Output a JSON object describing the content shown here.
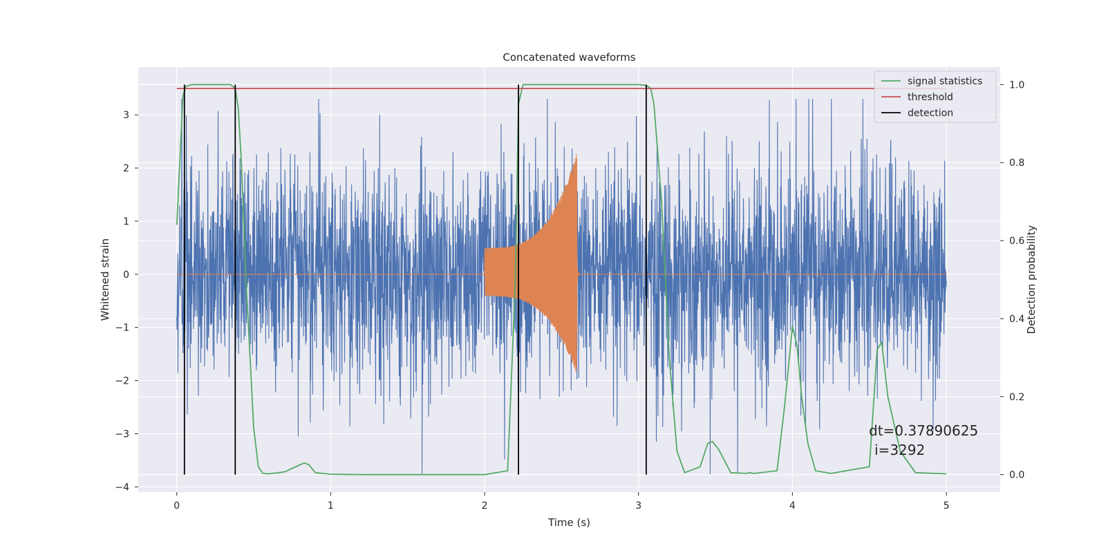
{
  "chart_data": {
    "type": "line",
    "title": "Concatenated waveforms",
    "xlabel": "Time (s)",
    "ylabel": "Whitened strain",
    "y2label": "Detection probability",
    "xlim": [
      -0.25,
      5.35
    ],
    "ylim": [
      -4.1,
      3.9
    ],
    "y2lim": [
      -0.045,
      1.045
    ],
    "xticks": [
      0,
      1,
      2,
      3,
      4,
      5
    ],
    "yticks": [
      -4,
      -3,
      -2,
      -1,
      0,
      1,
      2,
      3
    ],
    "y2ticks": [
      0.0,
      0.2,
      0.4,
      0.6,
      0.8,
      1.0
    ],
    "grid": true,
    "legend_position": "top-right",
    "background": "#eaeaf2",
    "colors": {
      "strain": "#4c72b0",
      "template": "#dd8452",
      "signal": "#55a868",
      "threshold": "#c44e52",
      "detection": "#000000"
    },
    "series": [
      {
        "kind": "strain_noise",
        "x_range": [
          0,
          5
        ],
        "typical_amplitude": 1.0,
        "peak_amplitude": 3.3
      },
      {
        "kind": "chirp",
        "start": 2.0,
        "merger": 2.6,
        "start_amplitude": 0.5,
        "peak_amplitude": 2.3,
        "trough_amplitude": -1.9
      },
      {
        "name": "signal statistics",
        "x": [
          0,
          0.02,
          0.04,
          0.06,
          0.1,
          0.35,
          0.38,
          0.4,
          0.42,
          0.45,
          0.5,
          0.53,
          0.56,
          0.6,
          0.7,
          0.8,
          0.83,
          0.86,
          0.9,
          1.0,
          1.2,
          2.0,
          2.15,
          2.2,
          2.22,
          2.25,
          3.0,
          3.05,
          3.08,
          3.1,
          3.15,
          3.2,
          3.25,
          3.3,
          3.4,
          3.45,
          3.48,
          3.52,
          3.6,
          3.7,
          3.72,
          3.75,
          3.9,
          3.95,
          4.0,
          4.03,
          4.06,
          4.1,
          4.15,
          4.25,
          4.5,
          4.55,
          4.58,
          4.62,
          4.7,
          4.8,
          5.0
        ],
        "y": [
          0.64,
          0.8,
          0.97,
          0.996,
          1.0,
          1.0,
          0.99,
          0.94,
          0.8,
          0.5,
          0.12,
          0.02,
          0.003,
          0.002,
          0.007,
          0.025,
          0.03,
          0.025,
          0.005,
          0.001,
          0.0,
          0.0,
          0.01,
          0.5,
          0.95,
          1.0,
          1.0,
          0.998,
          0.99,
          0.95,
          0.7,
          0.3,
          0.06,
          0.005,
          0.02,
          0.08,
          0.085,
          0.065,
          0.005,
          0.003,
          0.005,
          0.003,
          0.01,
          0.18,
          0.38,
          0.33,
          0.2,
          0.08,
          0.01,
          0.003,
          0.02,
          0.32,
          0.34,
          0.2,
          0.06,
          0.005,
          0.002
        ]
      },
      {
        "name": "threshold",
        "value": 0.99,
        "x_range": [
          0,
          5
        ]
      },
      {
        "name": "detection",
        "x": [
          0.05,
          0.38,
          2.22,
          3.05
        ]
      }
    ],
    "annotation": {
      "lines": [
        "dt=0.37890625",
        "i=3292"
      ]
    }
  }
}
